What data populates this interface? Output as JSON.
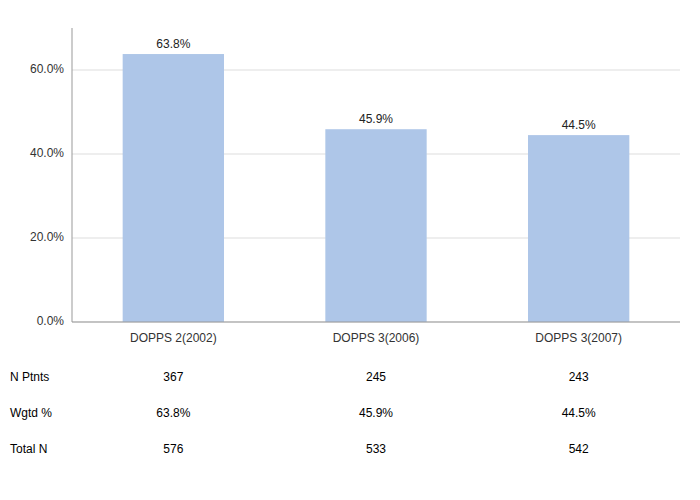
{
  "chart_data": {
    "type": "bar",
    "categories": [
      "DOPPS 2(2002)",
      "DOPPS 3(2006)",
      "DOPPS 3(2007)"
    ],
    "values": [
      63.8,
      45.9,
      44.5
    ],
    "value_labels": [
      "63.8%",
      "45.9%",
      "44.5%"
    ],
    "data_labels": true,
    "color": "#aec6e8",
    "ylim": [
      0,
      70
    ],
    "yticks": [
      {
        "value": 0,
        "label": "0.0%"
      },
      {
        "value": 20,
        "label": "20.0%"
      },
      {
        "value": 40,
        "label": "40.0%"
      },
      {
        "value": 60,
        "label": "60.0%"
      }
    ],
    "grid": true,
    "table": {
      "row_labels": [
        "N Ptnts",
        "Wgtd %",
        "Total N"
      ],
      "cells": [
        [
          "367",
          "245",
          "243"
        ],
        [
          "63.8%",
          "45.9%",
          "44.5%"
        ],
        [
          "576",
          "533",
          "542"
        ]
      ]
    }
  }
}
